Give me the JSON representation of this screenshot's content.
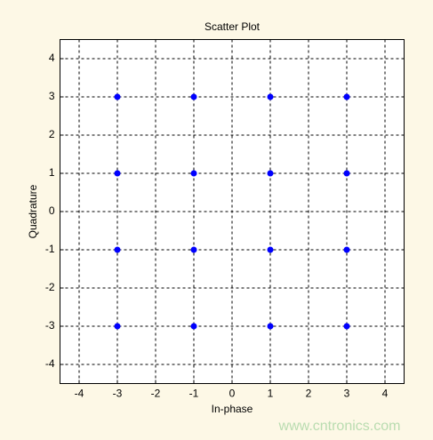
{
  "chart_data": {
    "type": "scatter",
    "title": "Scatter Plot",
    "xlabel": "In-phase",
    "ylabel": "Quadrature",
    "series": [
      {
        "color": "#0000ff",
        "x": [
          -3,
          -1,
          1,
          3,
          -3,
          -1,
          1,
          3,
          -3,
          -1,
          1,
          3,
          -3,
          -1,
          1,
          3
        ],
        "y": [
          3,
          3,
          3,
          3,
          1,
          1,
          1,
          1,
          -1,
          -1,
          -1,
          -1,
          -3,
          -3,
          -3,
          -3
        ]
      }
    ],
    "xlim": [
      -4.5,
      4.5
    ],
    "ylim": [
      -4.5,
      4.5
    ],
    "xticks": [
      -4,
      -3,
      -2,
      -1,
      0,
      1,
      2,
      3,
      4
    ],
    "yticks": [
      -4,
      -3,
      -2,
      -1,
      0,
      1,
      2,
      3,
      4
    ],
    "grid": true,
    "watermark": "www.cntronics.com"
  }
}
